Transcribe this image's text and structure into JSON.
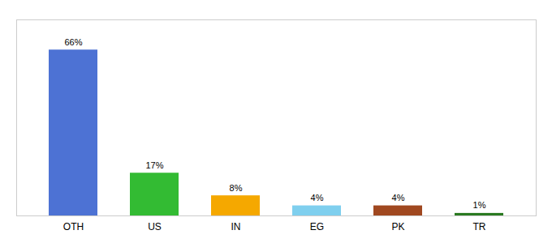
{
  "chart_data": {
    "type": "bar",
    "categories": [
      "OTH",
      "US",
      "IN",
      "EG",
      "PK",
      "TR"
    ],
    "values": [
      66,
      17,
      8,
      4,
      4,
      1
    ],
    "value_labels": [
      "66%",
      "17%",
      "8%",
      "4%",
      "4%",
      "1%"
    ],
    "colors": [
      "#4d72d4",
      "#33bb33",
      "#f5a800",
      "#7fcfee",
      "#a04820",
      "#2a7a20"
    ],
    "ylim": [
      0,
      78
    ],
    "data_labels": true,
    "tick_labels": "x",
    "grid": false
  }
}
